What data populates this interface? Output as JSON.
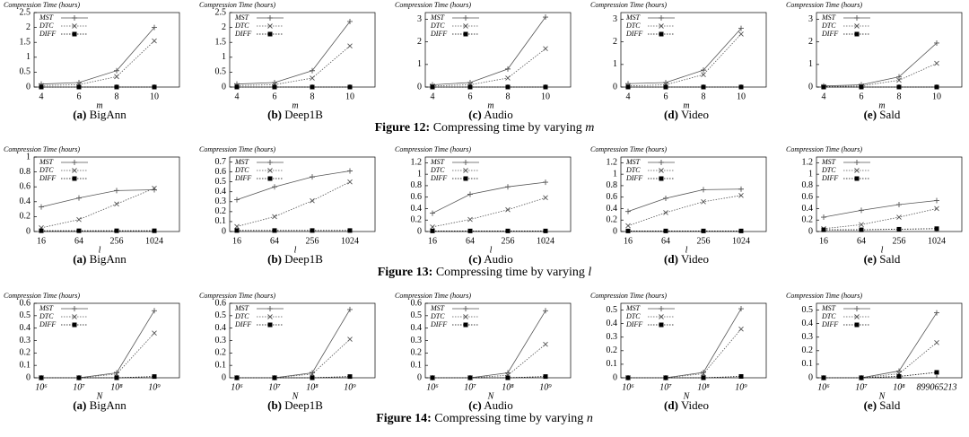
{
  "figures": [
    {
      "label": "Figure 12:",
      "text": "Compressing time by varying",
      "var": "m"
    },
    {
      "label": "Figure 13:",
      "text": "Compressing time by varying",
      "var": "l"
    },
    {
      "label": "Figure 14:",
      "text": "Compressing time by varying",
      "var": "n"
    }
  ],
  "chart_data": [
    {
      "type": "line",
      "caption": {
        "label": "(a)",
        "text": "BigAnn"
      },
      "y_label": "Compression Time (hours)",
      "x_label": "m",
      "categories": [
        "4",
        "6",
        "8",
        "10"
      ],
      "ylim": [
        0,
        2.5
      ],
      "yticks": [
        0,
        0.5,
        1,
        1.5,
        2,
        2.5
      ],
      "legend": "upper left",
      "series": [
        {
          "name": "MST",
          "color": "#555555",
          "style": "solid",
          "marker": "plus",
          "values": [
            0.1,
            0.15,
            0.55,
            2.0
          ]
        },
        {
          "name": "DTC",
          "color": "#555555",
          "style": "dotted",
          "marker": "x",
          "values": [
            0.05,
            0.08,
            0.35,
            1.55
          ]
        },
        {
          "name": "DIFF",
          "color": "#000000",
          "style": "dotted",
          "marker": "square",
          "values": [
            0,
            0,
            0,
            0
          ]
        }
      ]
    },
    {
      "type": "line",
      "caption": {
        "label": "(b)",
        "text": "Deep1B"
      },
      "y_label": "Compression Time (hours)",
      "x_label": "m",
      "categories": [
        "4",
        "6",
        "8",
        "10"
      ],
      "ylim": [
        0,
        2.5
      ],
      "yticks": [
        0,
        0.5,
        1,
        1.5,
        2,
        2.5
      ],
      "legend": "upper left",
      "series": [
        {
          "name": "MST",
          "color": "#555555",
          "style": "solid",
          "marker": "plus",
          "values": [
            0.1,
            0.15,
            0.55,
            2.2
          ]
        },
        {
          "name": "DTC",
          "color": "#555555",
          "style": "dotted",
          "marker": "x",
          "values": [
            0.05,
            0.08,
            0.3,
            1.38
          ]
        },
        {
          "name": "DIFF",
          "color": "#000000",
          "style": "dotted",
          "marker": "square",
          "values": [
            0,
            0,
            0,
            0
          ]
        }
      ]
    },
    {
      "type": "line",
      "caption": {
        "label": "(c)",
        "text": "Audio"
      },
      "y_label": "Compression Time (hours)",
      "x_label": "m",
      "categories": [
        "4",
        "6",
        "8",
        "10"
      ],
      "ylim": [
        0,
        3.3
      ],
      "yticks": [
        0,
        1,
        2,
        3
      ],
      "legend": "upper left",
      "series": [
        {
          "name": "MST",
          "color": "#555555",
          "style": "solid",
          "marker": "plus",
          "values": [
            0.1,
            0.2,
            0.8,
            3.1
          ]
        },
        {
          "name": "DTC",
          "color": "#555555",
          "style": "dotted",
          "marker": "x",
          "values": [
            0.05,
            0.1,
            0.4,
            1.7
          ]
        },
        {
          "name": "DIFF",
          "color": "#000000",
          "style": "dotted",
          "marker": "square",
          "values": [
            0,
            0,
            0,
            0
          ]
        }
      ]
    },
    {
      "type": "line",
      "caption": {
        "label": "(d)",
        "text": "Video"
      },
      "y_label": "Compression Time (hours)",
      "x_label": "m",
      "categories": [
        "4",
        "6",
        "8",
        "10"
      ],
      "ylim": [
        0,
        3.3
      ],
      "yticks": [
        0,
        1,
        2,
        3
      ],
      "legend": "upper left",
      "series": [
        {
          "name": "MST",
          "color": "#555555",
          "style": "solid",
          "marker": "plus",
          "values": [
            0.15,
            0.2,
            0.75,
            2.6
          ]
        },
        {
          "name": "DTC",
          "color": "#555555",
          "style": "dotted",
          "marker": "x",
          "values": [
            0.05,
            0.1,
            0.55,
            2.35
          ]
        },
        {
          "name": "DIFF",
          "color": "#000000",
          "style": "dotted",
          "marker": "square",
          "values": [
            0,
            0,
            0,
            0
          ]
        }
      ]
    },
    {
      "type": "line",
      "caption": {
        "label": "(e)",
        "text": "Sald"
      },
      "y_label": "Compression Time (hours)",
      "x_label": "m",
      "categories": [
        "4",
        "6",
        "8",
        "10"
      ],
      "ylim": [
        0,
        3.3
      ],
      "yticks": [
        0,
        1,
        2,
        3
      ],
      "legend": "upper left",
      "series": [
        {
          "name": "MST",
          "color": "#555555",
          "style": "solid",
          "marker": "plus",
          "values": [
            0.05,
            0.1,
            0.45,
            1.95
          ]
        },
        {
          "name": "DTC",
          "color": "#555555",
          "style": "dotted",
          "marker": "x",
          "values": [
            0.02,
            0.05,
            0.3,
            1.05
          ]
        },
        {
          "name": "DIFF",
          "color": "#000000",
          "style": "dotted",
          "marker": "square",
          "values": [
            0,
            0,
            0,
            0
          ]
        }
      ]
    },
    {
      "type": "line",
      "caption": {
        "label": "(a)",
        "text": "BigAnn"
      },
      "y_label": "Compression Time (hours)",
      "x_label": "l",
      "categories": [
        "16",
        "64",
        "256",
        "1024"
      ],
      "ylim": [
        0,
        1
      ],
      "yticks": [
        0,
        0.2,
        0.4,
        0.6,
        0.8,
        1
      ],
      "legend": "upper left",
      "series": [
        {
          "name": "MST",
          "color": "#555555",
          "style": "solid",
          "marker": "plus",
          "values": [
            0.33,
            0.45,
            0.55,
            0.56
          ]
        },
        {
          "name": "DTC",
          "color": "#555555",
          "style": "dotted",
          "marker": "x",
          "values": [
            0.05,
            0.16,
            0.37,
            0.58
          ]
        },
        {
          "name": "DIFF",
          "color": "#000000",
          "style": "dotted",
          "marker": "square",
          "values": [
            0.01,
            0.01,
            0.01,
            0.01
          ]
        }
      ]
    },
    {
      "type": "line",
      "caption": {
        "label": "(b)",
        "text": "Deep1B"
      },
      "y_label": "Compression Time (hours)",
      "x_label": "l",
      "categories": [
        "16",
        "64",
        "256",
        "1024"
      ],
      "ylim": [
        0,
        0.75
      ],
      "yticks": [
        0,
        0.1,
        0.2,
        0.3,
        0.4,
        0.5,
        0.6,
        0.7
      ],
      "legend": "upper left",
      "series": [
        {
          "name": "MST",
          "color": "#555555",
          "style": "solid",
          "marker": "plus",
          "values": [
            0.32,
            0.45,
            0.55,
            0.61
          ]
        },
        {
          "name": "DTC",
          "color": "#555555",
          "style": "dotted",
          "marker": "x",
          "values": [
            0.05,
            0.15,
            0.31,
            0.5
          ]
        },
        {
          "name": "DIFF",
          "color": "#000000",
          "style": "dotted",
          "marker": "square",
          "values": [
            0.01,
            0.01,
            0.01,
            0.01
          ]
        }
      ]
    },
    {
      "type": "line",
      "caption": {
        "label": "(c)",
        "text": "Audio"
      },
      "y_label": "Compression Time (hours)",
      "x_label": "l",
      "categories": [
        "16",
        "64",
        "256",
        "1024"
      ],
      "ylim": [
        0,
        1.3
      ],
      "yticks": [
        0,
        0.2,
        0.4,
        0.6,
        0.8,
        1,
        1.2
      ],
      "legend": "upper left",
      "series": [
        {
          "name": "MST",
          "color": "#555555",
          "style": "solid",
          "marker": "plus",
          "values": [
            0.32,
            0.65,
            0.78,
            0.86
          ]
        },
        {
          "name": "DTC",
          "color": "#555555",
          "style": "dotted",
          "marker": "x",
          "values": [
            0.08,
            0.21,
            0.38,
            0.59
          ]
        },
        {
          "name": "DIFF",
          "color": "#000000",
          "style": "dotted",
          "marker": "square",
          "values": [
            0.01,
            0.01,
            0.01,
            0.01
          ]
        }
      ]
    },
    {
      "type": "line",
      "caption": {
        "label": "(d)",
        "text": "Video"
      },
      "y_label": "Compression Time (hours)",
      "x_label": "l",
      "categories": [
        "16",
        "64",
        "256",
        "1024"
      ],
      "ylim": [
        0,
        1.3
      ],
      "yticks": [
        0,
        0.2,
        0.4,
        0.6,
        0.8,
        1,
        1.2
      ],
      "legend": "upper left",
      "series": [
        {
          "name": "MST",
          "color": "#555555",
          "style": "solid",
          "marker": "plus",
          "values": [
            0.35,
            0.58,
            0.73,
            0.74
          ]
        },
        {
          "name": "DTC",
          "color": "#555555",
          "style": "dotted",
          "marker": "x",
          "values": [
            0.1,
            0.33,
            0.52,
            0.63
          ]
        },
        {
          "name": "DIFF",
          "color": "#000000",
          "style": "dotted",
          "marker": "square",
          "values": [
            0.01,
            0.01,
            0.01,
            0.01
          ]
        }
      ]
    },
    {
      "type": "line",
      "caption": {
        "label": "(e)",
        "text": "Sald"
      },
      "y_label": "Compression Time (hours)",
      "x_label": "l",
      "categories": [
        "16",
        "64",
        "256",
        "1024"
      ],
      "ylim": [
        0,
        1.3
      ],
      "yticks": [
        0,
        0.2,
        0.4,
        0.6,
        0.8,
        1,
        1.2
      ],
      "legend": "upper left",
      "series": [
        {
          "name": "MST",
          "color": "#555555",
          "style": "solid",
          "marker": "plus",
          "values": [
            0.25,
            0.37,
            0.47,
            0.54
          ]
        },
        {
          "name": "DTC",
          "color": "#555555",
          "style": "dotted",
          "marker": "x",
          "values": [
            0.05,
            0.12,
            0.25,
            0.4
          ]
        },
        {
          "name": "DIFF",
          "color": "#000000",
          "style": "dotted",
          "marker": "square",
          "values": [
            0.03,
            0.03,
            0.04,
            0.05
          ]
        }
      ]
    },
    {
      "type": "line",
      "caption": {
        "label": "(a)",
        "text": "BigAnn"
      },
      "y_label": "Compression Time (hours)",
      "x_label": "N",
      "categories": [
        "10⁶",
        "10⁷",
        "10⁸",
        "10⁹"
      ],
      "ylim": [
        0,
        0.6
      ],
      "yticks": [
        0,
        0.1,
        0.2,
        0.3,
        0.4,
        0.5,
        0.6
      ],
      "legend": "upper left",
      "series": [
        {
          "name": "MST",
          "color": "#555555",
          "style": "solid",
          "marker": "plus",
          "values": [
            0,
            0,
            0.04,
            0.54
          ]
        },
        {
          "name": "DTC",
          "color": "#555555",
          "style": "dotted",
          "marker": "x",
          "values": [
            0,
            0,
            0.03,
            0.36
          ]
        },
        {
          "name": "DIFF",
          "color": "#000000",
          "style": "dotted",
          "marker": "square",
          "values": [
            0,
            0,
            0,
            0.01
          ]
        }
      ]
    },
    {
      "type": "line",
      "caption": {
        "label": "(b)",
        "text": "Deep1B"
      },
      "y_label": "Compression Time (hours)",
      "x_label": "N",
      "categories": [
        "10⁶",
        "10⁷",
        "10⁸",
        "10⁹"
      ],
      "ylim": [
        0,
        0.6
      ],
      "yticks": [
        0,
        0.1,
        0.2,
        0.3,
        0.4,
        0.5,
        0.6
      ],
      "legend": "upper left",
      "series": [
        {
          "name": "MST",
          "color": "#555555",
          "style": "solid",
          "marker": "plus",
          "values": [
            0,
            0,
            0.04,
            0.55
          ]
        },
        {
          "name": "DTC",
          "color": "#555555",
          "style": "dotted",
          "marker": "x",
          "values": [
            0,
            0,
            0.03,
            0.31
          ]
        },
        {
          "name": "DIFF",
          "color": "#000000",
          "style": "dotted",
          "marker": "square",
          "values": [
            0,
            0,
            0,
            0.01
          ]
        }
      ]
    },
    {
      "type": "line",
      "caption": {
        "label": "(c)",
        "text": "Audio"
      },
      "y_label": "Compression Time (hours)",
      "x_label": "N",
      "categories": [
        "10⁶",
        "10⁷",
        "10⁸",
        "10⁹"
      ],
      "ylim": [
        0,
        0.6
      ],
      "yticks": [
        0,
        0.1,
        0.2,
        0.3,
        0.4,
        0.5,
        0.6
      ],
      "legend": "upper left",
      "series": [
        {
          "name": "MST",
          "color": "#555555",
          "style": "solid",
          "marker": "plus",
          "values": [
            0,
            0,
            0.04,
            0.54
          ]
        },
        {
          "name": "DTC",
          "color": "#555555",
          "style": "dotted",
          "marker": "x",
          "values": [
            0,
            0,
            0.02,
            0.27
          ]
        },
        {
          "name": "DIFF",
          "color": "#000000",
          "style": "dotted",
          "marker": "square",
          "values": [
            0,
            0,
            0,
            0.01
          ]
        }
      ]
    },
    {
      "type": "line",
      "caption": {
        "label": "(d)",
        "text": "Video"
      },
      "y_label": "Compression Time (hours)",
      "x_label": "N",
      "categories": [
        "10⁶",
        "10⁷",
        "10⁸",
        "10⁹"
      ],
      "ylim": [
        0,
        0.55
      ],
      "yticks": [
        0,
        0.1,
        0.2,
        0.3,
        0.4,
        0.5
      ],
      "legend": "upper left",
      "series": [
        {
          "name": "MST",
          "color": "#555555",
          "style": "solid",
          "marker": "plus",
          "values": [
            0,
            0,
            0.04,
            0.51
          ]
        },
        {
          "name": "DTC",
          "color": "#555555",
          "style": "dotted",
          "marker": "x",
          "values": [
            0,
            0,
            0.03,
            0.36
          ]
        },
        {
          "name": "DIFF",
          "color": "#000000",
          "style": "dotted",
          "marker": "square",
          "values": [
            0,
            0,
            0,
            0.01
          ]
        }
      ]
    },
    {
      "type": "line",
      "caption": {
        "label": "(e)",
        "text": "Sald"
      },
      "y_label": "Compression Time (hours)",
      "x_label": "N",
      "categories": [
        "10⁶",
        "10⁷",
        "10⁸",
        "899065213"
      ],
      "ylim": [
        0,
        0.55
      ],
      "yticks": [
        0,
        0.1,
        0.2,
        0.3,
        0.4,
        0.5
      ],
      "legend": "upper left",
      "series": [
        {
          "name": "MST",
          "color": "#555555",
          "style": "solid",
          "marker": "plus",
          "values": [
            0,
            0,
            0.05,
            0.48
          ]
        },
        {
          "name": "DTC",
          "color": "#555555",
          "style": "dotted",
          "marker": "x",
          "values": [
            0,
            0,
            0.03,
            0.26
          ]
        },
        {
          "name": "DIFF",
          "color": "#000000",
          "style": "dotted",
          "marker": "square",
          "values": [
            0,
            0,
            0.01,
            0.04
          ]
        }
      ]
    }
  ]
}
